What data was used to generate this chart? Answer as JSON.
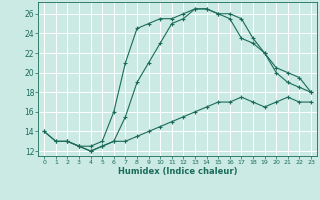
{
  "xlabel": "Humidex (Indice chaleur)",
  "bg_color": "#cceae4",
  "grid_color": "#ffffff",
  "line_color": "#1a6b5a",
  "xlim": [
    -0.5,
    23.5
  ],
  "ylim": [
    11.5,
    27.2
  ],
  "xticks": [
    0,
    1,
    2,
    3,
    4,
    5,
    6,
    7,
    8,
    9,
    10,
    11,
    12,
    13,
    14,
    15,
    16,
    17,
    18,
    19,
    20,
    21,
    22,
    23
  ],
  "yticks": [
    12,
    14,
    16,
    18,
    20,
    22,
    24,
    26
  ],
  "line1_x": [
    0,
    1,
    2,
    3,
    4,
    5,
    6,
    7,
    8,
    9,
    10,
    11,
    12,
    13,
    14,
    15,
    16,
    17,
    18,
    19,
    20,
    21,
    22,
    23
  ],
  "line1_y": [
    14,
    13,
    13,
    12.5,
    12,
    12.5,
    13,
    15.5,
    19,
    21,
    23,
    25,
    25.5,
    26.5,
    26.5,
    26,
    26,
    25.5,
    23.5,
    22,
    20,
    19,
    18.5,
    18
  ],
  "line2_x": [
    2,
    3,
    4,
    5,
    6,
    7,
    8,
    9,
    10,
    11,
    12,
    13,
    14,
    15,
    16,
    17,
    18,
    19,
    20,
    21,
    22,
    23
  ],
  "line2_y": [
    13,
    12.5,
    12,
    12.5,
    13,
    13,
    13.5,
    14,
    14.5,
    15,
    15.5,
    16,
    16.5,
    17,
    17,
    17.5,
    17,
    16.5,
    17,
    17.5,
    17,
    17
  ],
  "line3_x": [
    0,
    1,
    2,
    3,
    4,
    5,
    6,
    7,
    8,
    9,
    10,
    11,
    12,
    13,
    14,
    15,
    16,
    17,
    18,
    19,
    20,
    21,
    22,
    23
  ],
  "line3_y": [
    14,
    13,
    13,
    12.5,
    12.5,
    13,
    16,
    21,
    24.5,
    25,
    25.5,
    25.5,
    26,
    26.5,
    26.5,
    26,
    25.5,
    23.5,
    23,
    22,
    20.5,
    20,
    19.5,
    18
  ]
}
